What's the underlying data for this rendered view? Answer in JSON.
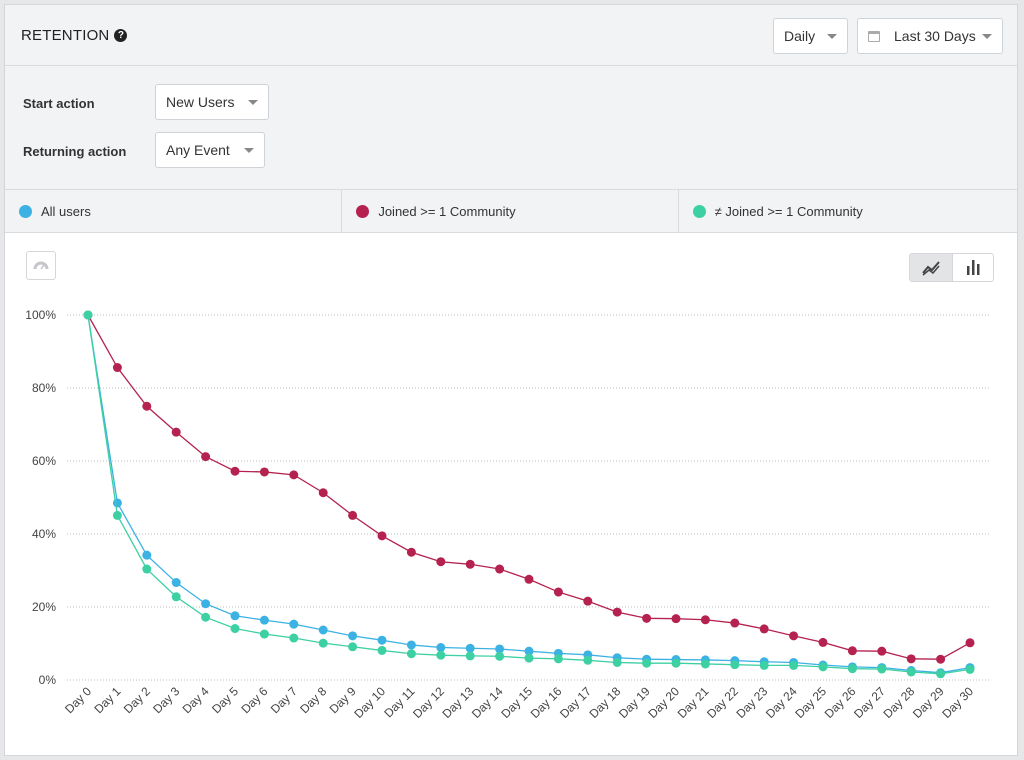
{
  "header": {
    "title": "RETENTION",
    "help_icon": "question-circle-icon",
    "interval": "Daily",
    "date_range": "Last 30 Days",
    "date_icon": "calendar-icon"
  },
  "filters": {
    "start_action_label": "Start action",
    "start_action_value": "New Users",
    "returning_action_label": "Returning action",
    "returning_action_value": "Any Event"
  },
  "colors": {
    "all_users": "#3bb2e3",
    "joined": "#b5224f",
    "not_joined": "#3dd0a2"
  },
  "toolbar": {
    "dashboard_icon": "speedometer-icon",
    "line_icon": "line-chart-icon",
    "bar_icon": "bar-chart-icon"
  },
  "chart_data": {
    "type": "line",
    "categories": [
      "Day 0",
      "Day 1",
      "Day 2",
      "Day 3",
      "Day 4",
      "Day 5",
      "Day 6",
      "Day 7",
      "Day 8",
      "Day 9",
      "Day 10",
      "Day 11",
      "Day 12",
      "Day 13",
      "Day 14",
      "Day 15",
      "Day 16",
      "Day 17",
      "Day 18",
      "Day 19",
      "Day 20",
      "Day 21",
      "Day 22",
      "Day 23",
      "Day 24",
      "Day 25",
      "Day 26",
      "Day 27",
      "Day 28",
      "Day 29",
      "Day 30"
    ],
    "ylim": [
      0,
      100
    ],
    "yticks": [
      "0%",
      "20%",
      "40%",
      "60%",
      "80%",
      "100%"
    ],
    "grid": true,
    "series": [
      {
        "name": "All users",
        "color": "#3bb2e3",
        "values": [
          100,
          48.5,
          34.2,
          26.7,
          20.9,
          17.6,
          16.4,
          15.3,
          13.7,
          12.1,
          10.9,
          9.6,
          8.9,
          8.7,
          8.5,
          7.9,
          7.3,
          6.9,
          6.1,
          5.7,
          5.6,
          5.5,
          5.3,
          5.0,
          4.8,
          4.1,
          3.6,
          3.4,
          2.6,
          2.0,
          3.4
        ]
      },
      {
        "name": "Joined >= 1 Community",
        "color": "#b5224f",
        "values": [
          100,
          85.6,
          75,
          67.9,
          61.2,
          57.2,
          57,
          56.2,
          51.3,
          45.1,
          39.5,
          35,
          32.4,
          31.7,
          30.4,
          27.6,
          24.1,
          21.6,
          18.6,
          16.9,
          16.8,
          16.5,
          15.6,
          14,
          12.1,
          10.3,
          8,
          7.9,
          5.8,
          5.7,
          10.2
        ]
      },
      {
        "name": "≠ Joined >= 1 Community",
        "color": "#3dd0a2",
        "values": [
          100,
          45.1,
          30.4,
          22.8,
          17.2,
          14.1,
          12.6,
          11.5,
          10.1,
          9.1,
          8.1,
          7.2,
          6.8,
          6.6,
          6.5,
          6,
          5.8,
          5.4,
          4.8,
          4.6,
          4.6,
          4.4,
          4.2,
          4.0,
          4.0,
          3.6,
          3.1,
          3.0,
          2.2,
          1.7,
          2.9
        ]
      }
    ]
  }
}
